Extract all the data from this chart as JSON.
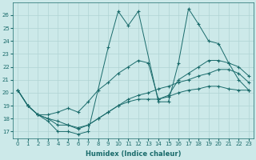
{
  "xlabel": "Humidex (Indice chaleur)",
  "xlim": [
    -0.5,
    23.5
  ],
  "ylim": [
    16.5,
    27
  ],
  "yticks": [
    17,
    18,
    19,
    20,
    21,
    22,
    23,
    24,
    25,
    26
  ],
  "xticks": [
    0,
    1,
    2,
    3,
    4,
    5,
    6,
    7,
    8,
    9,
    10,
    11,
    12,
    13,
    14,
    15,
    16,
    17,
    18,
    19,
    20,
    21,
    22,
    23
  ],
  "bg_color": "#cce9e9",
  "line_color": "#1a6b6b",
  "grid_color": "#b0d4d4",
  "lines": [
    {
      "x": [
        0,
        1,
        2,
        3,
        4,
        5,
        6,
        7,
        9,
        10,
        11,
        12,
        14,
        15,
        16,
        17,
        18,
        19,
        20,
        21,
        22,
        23
      ],
      "y": [
        20.2,
        19.0,
        18.3,
        17.8,
        17.0,
        17.0,
        16.8,
        17.0,
        23.5,
        26.3,
        25.2,
        26.3,
        19.3,
        19.3,
        22.3,
        26.5,
        25.3,
        24.0,
        23.8,
        22.3,
        21.0,
        20.2
      ]
    },
    {
      "x": [
        0,
        1,
        2,
        3,
        4,
        5,
        6,
        7,
        8,
        9,
        10,
        11,
        12,
        13,
        14,
        15,
        16,
        17,
        18,
        19,
        20,
        21,
        22,
        23
      ],
      "y": [
        20.2,
        19.0,
        18.3,
        18.3,
        18.5,
        18.8,
        18.5,
        19.3,
        20.2,
        20.8,
        21.5,
        22.0,
        22.5,
        22.3,
        19.5,
        19.8,
        21.0,
        21.5,
        22.0,
        22.5,
        22.5,
        22.3,
        22.0,
        21.3
      ]
    },
    {
      "x": [
        0,
        1,
        2,
        3,
        4,
        5,
        6,
        7,
        8,
        9,
        10,
        11,
        12,
        13,
        14,
        15,
        16,
        17,
        18,
        19,
        20,
        21,
        22,
        23
      ],
      "y": [
        20.2,
        19.0,
        18.3,
        18.0,
        17.8,
        17.5,
        17.3,
        17.5,
        18.0,
        18.5,
        19.0,
        19.5,
        19.8,
        20.0,
        20.3,
        20.5,
        20.8,
        21.0,
        21.3,
        21.5,
        21.8,
        21.8,
        21.5,
        20.8
      ]
    },
    {
      "x": [
        0,
        1,
        2,
        3,
        4,
        5,
        6,
        7,
        8,
        9,
        10,
        11,
        12,
        13,
        14,
        15,
        16,
        17,
        18,
        19,
        20,
        21,
        22,
        23
      ],
      "y": [
        20.2,
        19.0,
        18.3,
        18.0,
        17.5,
        17.5,
        17.2,
        17.5,
        18.0,
        18.5,
        19.0,
        19.3,
        19.5,
        19.5,
        19.5,
        19.7,
        20.0,
        20.2,
        20.3,
        20.5,
        20.5,
        20.3,
        20.2,
        20.2
      ]
    }
  ]
}
